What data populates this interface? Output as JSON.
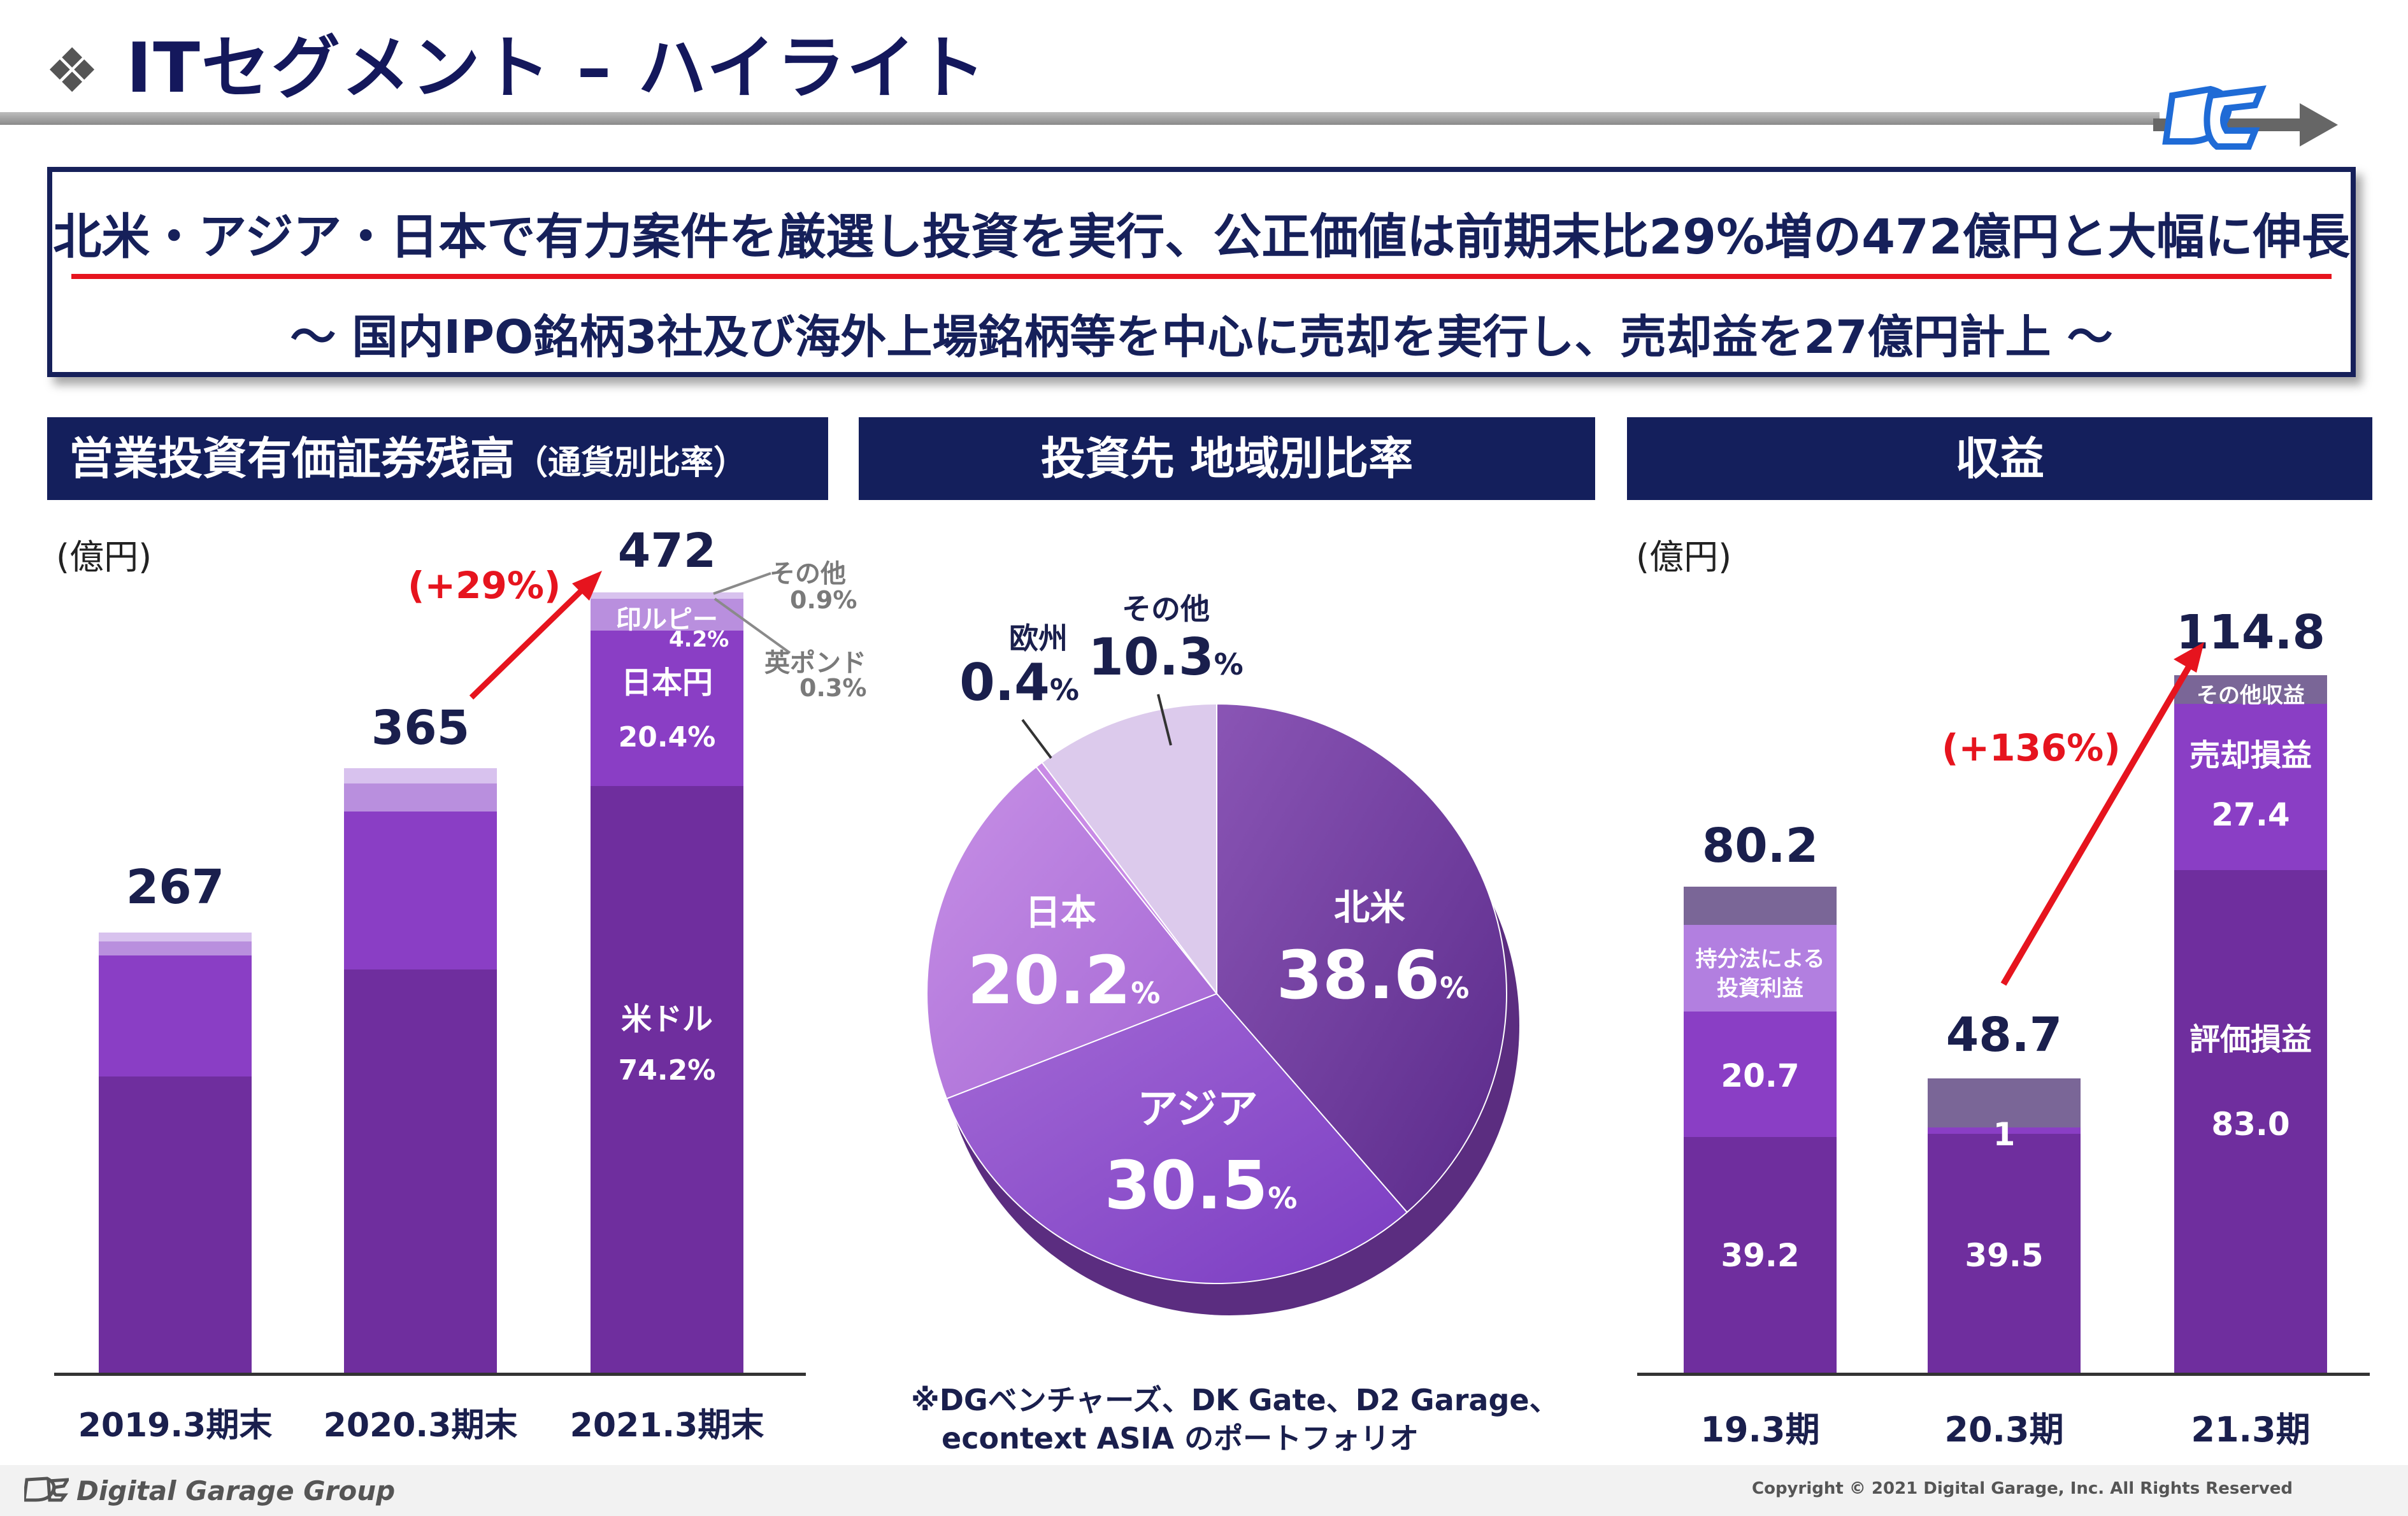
{
  "header": {
    "title": "ITセグメント – ハイライト"
  },
  "summary": {
    "line1": "北米・アジア・日本で有力案件を厳選し投資を実行、公正価値は前期末比29%増の472億円と大幅に伸長",
    "line2": "～ 国内IPO銘柄3社及び海外上場銘柄等を中心に売却を実行し、売却益を27億円計上 ～"
  },
  "panel1": {
    "title": "営業投資有価証券残高",
    "title_sub": "（通貨別比率）",
    "unit": "(億円)",
    "growth": "(+29%)",
    "bars": [
      {
        "label": "2019.3期末",
        "total": "267",
        "value": 267
      },
      {
        "label": "2020.3期末",
        "total": "365",
        "value": 365
      },
      {
        "label": "2021.3期末",
        "total": "472",
        "value": 472
      }
    ],
    "labels": {
      "usd": "米ドル",
      "usd_pct": "74.2%",
      "jpy": "日本円",
      "jpy_pct": "20.4%",
      "inr": "印ルピー",
      "inr_pct": "4.2%",
      "other": "その他",
      "other_pct": "0.9%",
      "gbp": "英ポンド",
      "gbp_pct": "0.3%"
    }
  },
  "panel2": {
    "title": "投資先 地域別比率",
    "note1": "※DGベンチャーズ、DK Gate、D2 Garage、",
    "note2": "econtext ASIA のポートフォリオ",
    "slices": [
      {
        "name": "北米",
        "value": "38.6",
        "pct": 38.6
      },
      {
        "name": "アジア",
        "value": "30.5",
        "pct": 30.5
      },
      {
        "name": "日本",
        "value": "20.2",
        "pct": 20.2
      },
      {
        "name": "欧州",
        "value": "0.4",
        "pct": 0.4
      },
      {
        "name": "その他",
        "value": "10.3",
        "pct": 10.3
      }
    ],
    "pct_unit": "%"
  },
  "panel3": {
    "title": "収益",
    "unit": "(億円)",
    "growth": "(+136%)",
    "bars": [
      {
        "label": "19.3期",
        "total": "80.2",
        "value": 80.2
      },
      {
        "label": "20.3期",
        "total": "48.7",
        "value": 48.7
      },
      {
        "label": "21.3期",
        "total": "114.8",
        "value": 114.8
      }
    ],
    "labels": {
      "b1_bottom": "39.2",
      "b1_mid": "20.7",
      "b1_equity1": "持分法による",
      "b1_equity2": "投資利益",
      "b2_bottom": "39.5",
      "b2_mid": "1",
      "b3_eval": "評価損益",
      "b3_eval_val": "83.0",
      "b3_sale": "売却損益",
      "b3_sale_val": "27.4",
      "b3_other": "その他収益"
    }
  },
  "footer": {
    "brand": "Digital Garage Group",
    "copyright": "Copyright © 2021 Digital Garage, Inc. All Rights Reserved"
  },
  "colors": {
    "navy": "#141f5c",
    "red": "#e6141e",
    "purple_dark": "#6f2e9e"
  },
  "chart_data": [
    {
      "type": "bar",
      "title": "営業投資有価証券残高",
      "categories": [
        "2019.3期末",
        "2020.3期末",
        "2021.3期末"
      ],
      "values": [
        267,
        365,
        472
      ],
      "ylabel": "(億円)",
      "series": [
        {
          "name": "米ドル",
          "values": [
            null,
            null,
            74.2
          ]
        },
        {
          "name": "日本円",
          "values": [
            null,
            null,
            20.4
          ]
        },
        {
          "name": "印ルピー",
          "values": [
            null,
            null,
            4.2
          ]
        },
        {
          "name": "その他",
          "values": [
            null,
            null,
            0.9
          ]
        },
        {
          "name": "英ポンド",
          "values": [
            null,
            null,
            0.3
          ]
        }
      ]
    },
    {
      "type": "pie",
      "title": "投資先 地域別比率",
      "categories": [
        "北米",
        "アジア",
        "日本",
        "欧州",
        "その他"
      ],
      "values": [
        38.6,
        30.5,
        20.2,
        0.4,
        10.3
      ]
    },
    {
      "type": "bar",
      "title": "収益",
      "categories": [
        "19.3期",
        "20.3期",
        "21.3期"
      ],
      "values": [
        80.2,
        48.7,
        114.8
      ],
      "ylabel": "(億円)",
      "series": [
        {
          "name": "評価損益",
          "values": [
            39.2,
            39.5,
            83.0
          ]
        },
        {
          "name": "売却損益",
          "values": [
            20.7,
            1,
            27.4
          ]
        }
      ]
    }
  ]
}
